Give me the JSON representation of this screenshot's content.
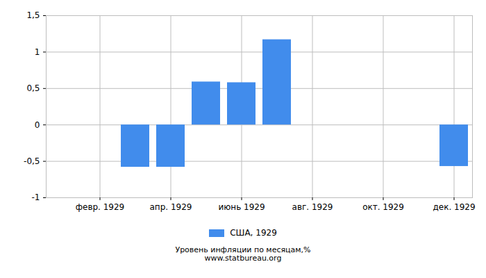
{
  "chart_data": {
    "type": "bar",
    "title": "Уровень инфляции по месяцам,%",
    "subtitle": "www.statbureau.org",
    "categories": [
      null,
      "февр. 1929",
      null,
      "апр. 1929",
      null,
      "июнь 1929",
      null,
      "авг. 1929",
      null,
      "окт. 1929",
      null,
      "дек. 1929"
    ],
    "series": [
      {
        "name": "США, 1929",
        "color": "#418cec",
        "values": [
          0,
          0,
          -0.58,
          -0.58,
          0.59,
          0.58,
          1.17,
          0,
          0,
          0,
          0,
          -0.57
        ]
      }
    ],
    "ylim": [
      -1,
      1.5
    ],
    "yticks": [
      -1,
      {
        "value": -0.5,
        "label": "-0,5"
      },
      0,
      {
        "value": 0.5,
        "label": "0,5"
      },
      1,
      {
        "value": 1.5,
        "label": "1,5"
      }
    ],
    "grid": true,
    "legend": "bottom"
  }
}
